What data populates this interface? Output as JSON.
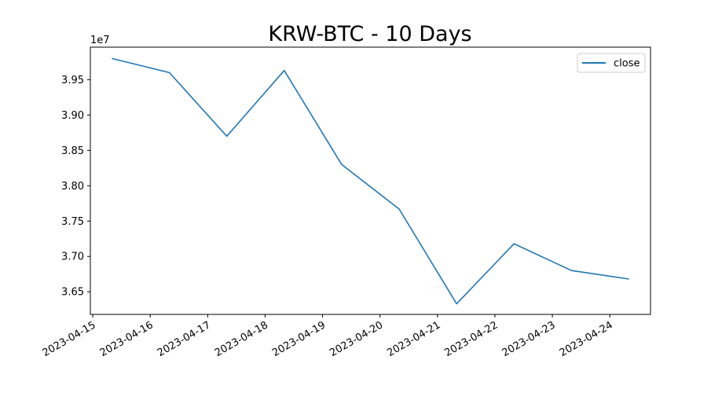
{
  "chart_data": {
    "type": "line",
    "title": "KRW-BTC - 10 Days",
    "xlabel": "",
    "ylabel": "",
    "y_offset_label": "1e7",
    "y_multiplier": 10000000,
    "x": [
      "2023-04-15 08:00",
      "2023-04-16 08:00",
      "2023-04-17 08:00",
      "2023-04-18 08:00",
      "2023-04-19 08:00",
      "2023-04-20 08:00",
      "2023-04-21 08:00",
      "2023-04-22 08:00",
      "2023-04-23 08:00",
      "2023-04-24 08:00"
    ],
    "series": [
      {
        "name": "close",
        "color": "#1f77b4",
        "values": [
          39800000,
          39600000,
          38700000,
          39630000,
          38300000,
          37670000,
          36330000,
          37180000,
          36800000,
          36680000
        ]
      }
    ],
    "xlim": [
      "2023-04-14 23:00",
      "2023-04-24 17:00"
    ],
    "ylim": [
      36180000,
      39960000
    ],
    "xticks": [
      "2023-04-15",
      "2023-04-16",
      "2023-04-17",
      "2023-04-18",
      "2023-04-19",
      "2023-04-20",
      "2023-04-21",
      "2023-04-22",
      "2023-04-23",
      "2023-04-24"
    ],
    "yticks": [
      36500000,
      37000000,
      37500000,
      38000000,
      38500000,
      39000000,
      39500000
    ],
    "ytick_labels": [
      "3.65",
      "3.70",
      "3.75",
      "3.80",
      "3.85",
      "3.90",
      "3.95"
    ],
    "grid": false,
    "legend_position": "upper right"
  }
}
